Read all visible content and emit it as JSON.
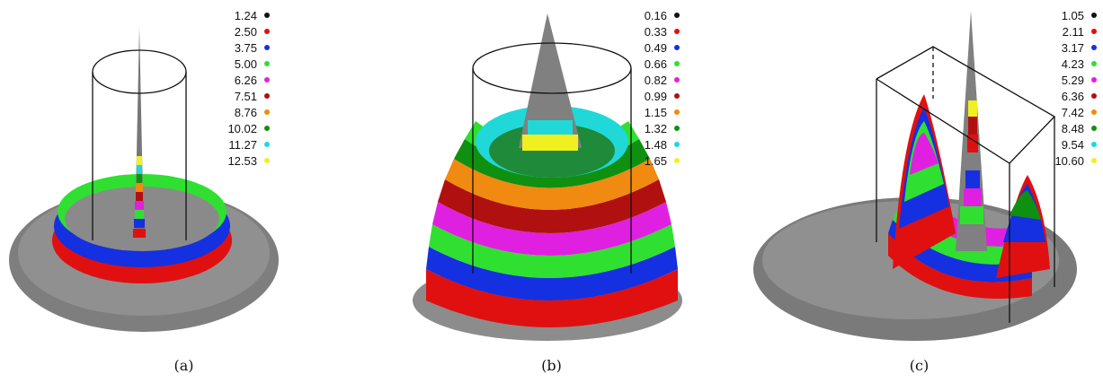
{
  "panels": [
    {
      "caption": "(a)",
      "legend": [
        "1.24",
        "2.50",
        "3.75",
        "5.00",
        "6.26",
        "7.51",
        "8.76",
        "10.02",
        "11.27",
        "12.53"
      ]
    },
    {
      "caption": "(b)",
      "legend": [
        "0.16",
        "0.33",
        "0.49",
        "0.66",
        "0.82",
        "0.99",
        "1.15",
        "1.32",
        "1.48",
        "1.65"
      ]
    },
    {
      "caption": "(c)",
      "legend": [
        "1.05",
        "2.11",
        "3.17",
        "4.23",
        "5.29",
        "6.36",
        "7.42",
        "8.48",
        "9.54",
        "10.60"
      ]
    }
  ],
  "legend_colors": [
    "#111111",
    "#e01010",
    "#1530e0",
    "#30e030",
    "#e020e0",
    "#b01010",
    "#f08a10",
    "#109010",
    "#20d8d8",
    "#f0f020"
  ],
  "surface_color": "#8c8c8c"
}
